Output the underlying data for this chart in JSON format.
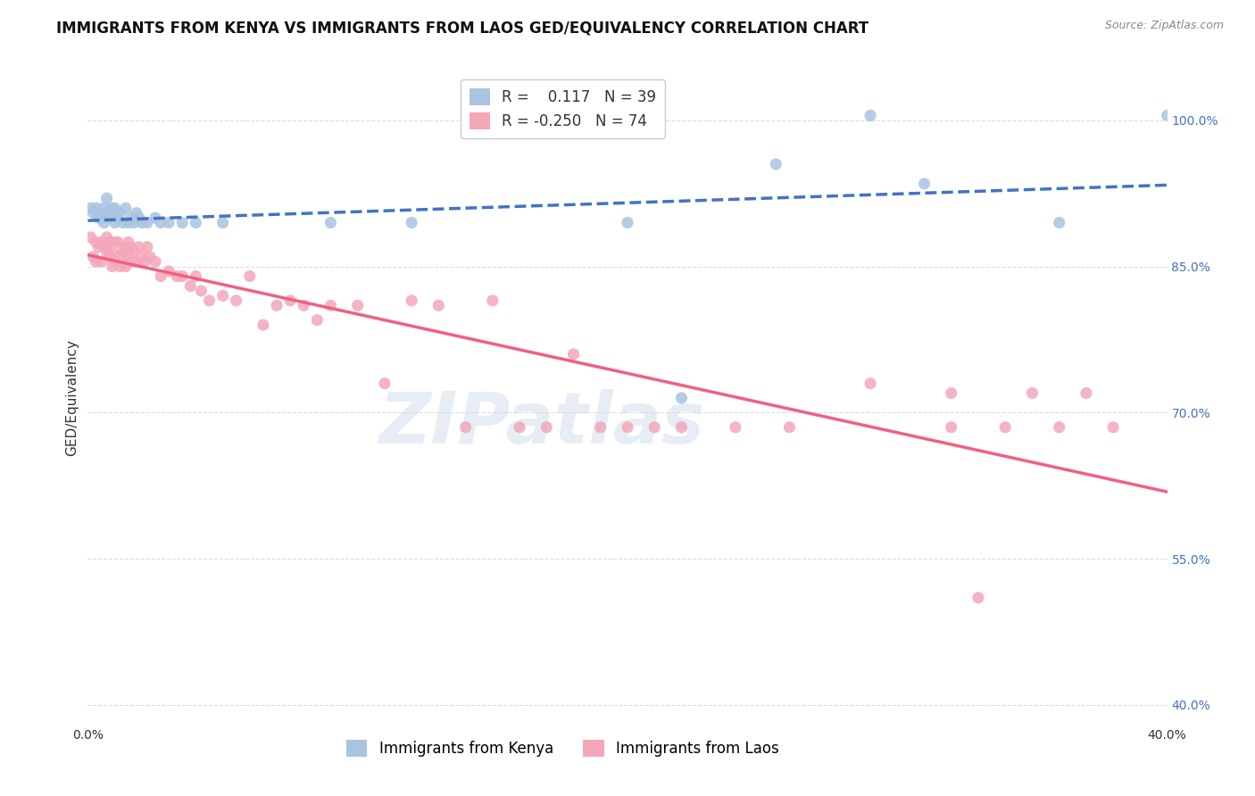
{
  "title": "IMMIGRANTS FROM KENYA VS IMMIGRANTS FROM LAOS GED/EQUIVALENCY CORRELATION CHART",
  "source": "Source: ZipAtlas.com",
  "ylabel": "GED/Equivalency",
  "ytick_labels": [
    "100.0%",
    "85.0%",
    "70.0%",
    "55.0%",
    "40.0%"
  ],
  "ytick_values": [
    1.0,
    0.85,
    0.7,
    0.55,
    0.4
  ],
  "xlim": [
    0.0,
    0.4
  ],
  "ylim": [
    0.38,
    1.05
  ],
  "kenya_R": 0.117,
  "kenya_N": 39,
  "laos_R": -0.25,
  "laos_N": 74,
  "kenya_color": "#a8c4e0",
  "laos_color": "#f4a7b9",
  "kenya_line_color": "#4472c4",
  "laos_line_color": "#f06080",
  "kenya_scatter_x": [
    0.001,
    0.002,
    0.003,
    0.004,
    0.005,
    0.006,
    0.006,
    0.007,
    0.007,
    0.008,
    0.009,
    0.01,
    0.01,
    0.011,
    0.012,
    0.013,
    0.014,
    0.015,
    0.016,
    0.017,
    0.018,
    0.019,
    0.02,
    0.022,
    0.025,
    0.027,
    0.03,
    0.035,
    0.04,
    0.05,
    0.09,
    0.12,
    0.2,
    0.22,
    0.255,
    0.29,
    0.31,
    0.36,
    0.4
  ],
  "kenya_scatter_y": [
    0.91,
    0.905,
    0.91,
    0.9,
    0.9,
    0.895,
    0.91,
    0.905,
    0.92,
    0.9,
    0.91,
    0.895,
    0.91,
    0.9,
    0.905,
    0.895,
    0.91,
    0.895,
    0.9,
    0.895,
    0.905,
    0.9,
    0.895,
    0.895,
    0.9,
    0.895,
    0.895,
    0.895,
    0.895,
    0.895,
    0.895,
    0.895,
    0.895,
    0.715,
    0.955,
    1.005,
    0.935,
    0.895,
    1.005
  ],
  "laos_scatter_x": [
    0.001,
    0.002,
    0.003,
    0.003,
    0.004,
    0.005,
    0.005,
    0.006,
    0.007,
    0.007,
    0.008,
    0.008,
    0.009,
    0.009,
    0.01,
    0.01,
    0.011,
    0.012,
    0.012,
    0.013,
    0.014,
    0.014,
    0.015,
    0.015,
    0.016,
    0.016,
    0.017,
    0.018,
    0.019,
    0.02,
    0.021,
    0.022,
    0.023,
    0.025,
    0.027,
    0.03,
    0.033,
    0.035,
    0.038,
    0.04,
    0.042,
    0.045,
    0.05,
    0.055,
    0.06,
    0.065,
    0.07,
    0.075,
    0.08,
    0.085,
    0.09,
    0.1,
    0.11,
    0.12,
    0.13,
    0.14,
    0.15,
    0.16,
    0.17,
    0.18,
    0.19,
    0.2,
    0.21,
    0.22,
    0.24,
    0.26,
    0.29,
    0.32,
    0.34,
    0.36,
    0.38,
    0.32,
    0.35,
    0.37
  ],
  "laos_scatter_y": [
    0.88,
    0.86,
    0.875,
    0.855,
    0.87,
    0.875,
    0.855,
    0.87,
    0.865,
    0.88,
    0.86,
    0.875,
    0.865,
    0.85,
    0.875,
    0.855,
    0.875,
    0.86,
    0.85,
    0.865,
    0.87,
    0.85,
    0.86,
    0.875,
    0.855,
    0.87,
    0.865,
    0.855,
    0.87,
    0.86,
    0.855,
    0.87,
    0.86,
    0.855,
    0.84,
    0.845,
    0.84,
    0.84,
    0.83,
    0.84,
    0.825,
    0.815,
    0.82,
    0.815,
    0.84,
    0.79,
    0.81,
    0.815,
    0.81,
    0.795,
    0.81,
    0.81,
    0.73,
    0.815,
    0.81,
    0.685,
    0.815,
    0.685,
    0.685,
    0.76,
    0.685,
    0.685,
    0.685,
    0.685,
    0.685,
    0.685,
    0.73,
    0.685,
    0.685,
    0.685,
    0.685,
    0.72,
    0.72,
    0.72
  ],
  "laos_outlier_x": [
    0.33
  ],
  "laos_outlier_y": [
    0.51
  ],
  "background_color": "#ffffff",
  "grid_color": "#dddddd",
  "title_fontsize": 12,
  "label_fontsize": 11,
  "tick_fontsize": 10,
  "legend_fontsize": 12,
  "watermark_text": "ZIPatlas",
  "watermark_color": "#c8d8ea",
  "watermark_alpha": 0.45
}
